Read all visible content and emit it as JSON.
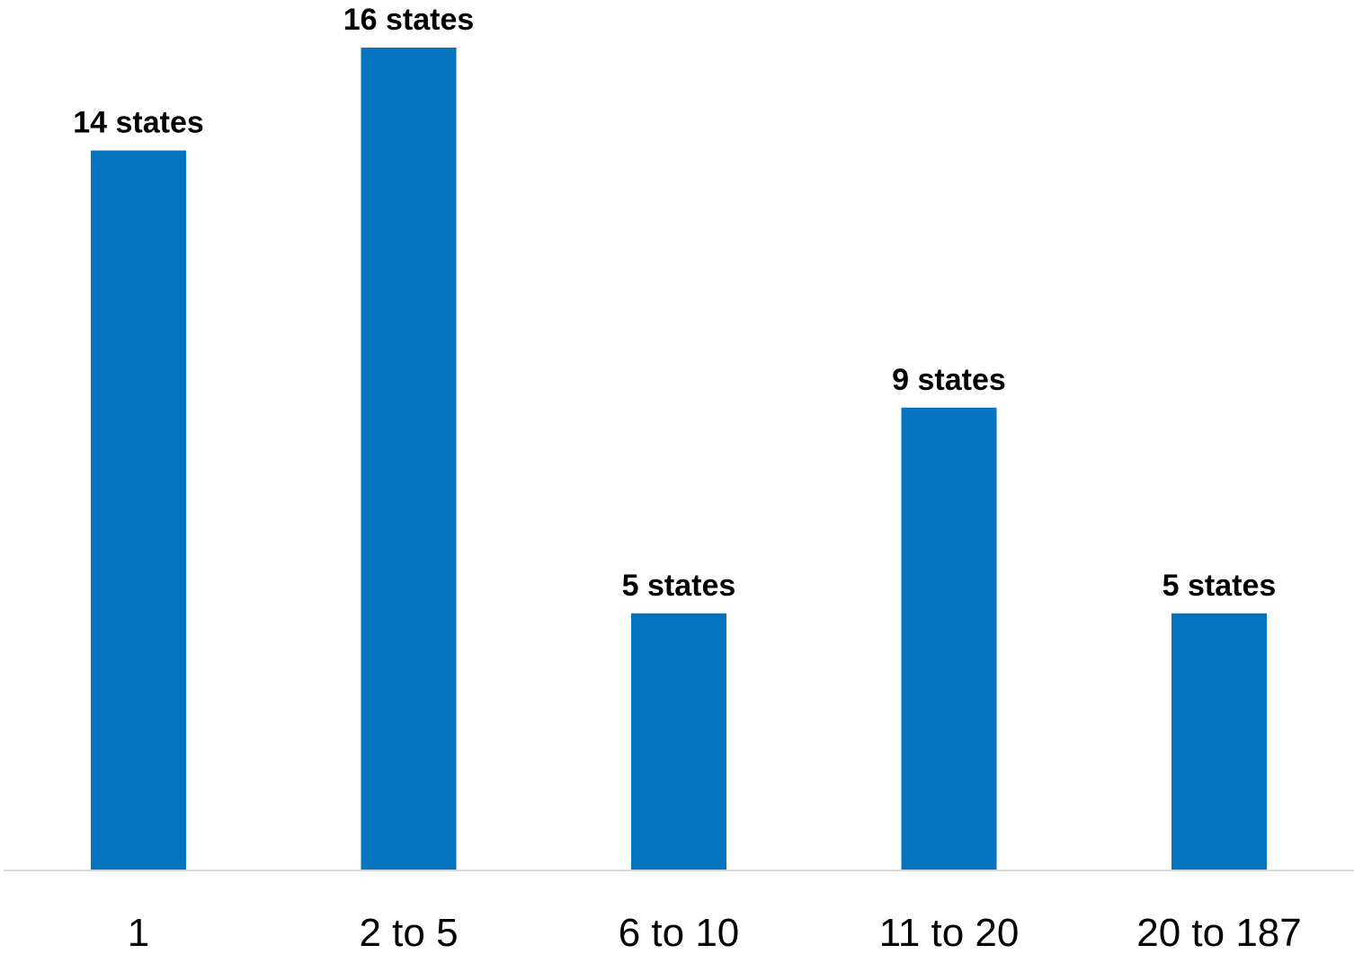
{
  "chart_data": {
    "type": "bar",
    "categories": [
      "1",
      "2 to 5",
      "6 to 10",
      "11 to 20",
      "20 to 187"
    ],
    "values": [
      14,
      16,
      5,
      9,
      5
    ],
    "data_labels": [
      "14 states",
      "16 states",
      "5 states",
      "9 states",
      "5 states"
    ],
    "title": "",
    "xlabel": "",
    "ylabel": "",
    "ylim": [
      0,
      16
    ],
    "grid": false,
    "legend": "none",
    "colors": {
      "bar": "#0573BE",
      "baseline": "#D9D9D9"
    }
  }
}
